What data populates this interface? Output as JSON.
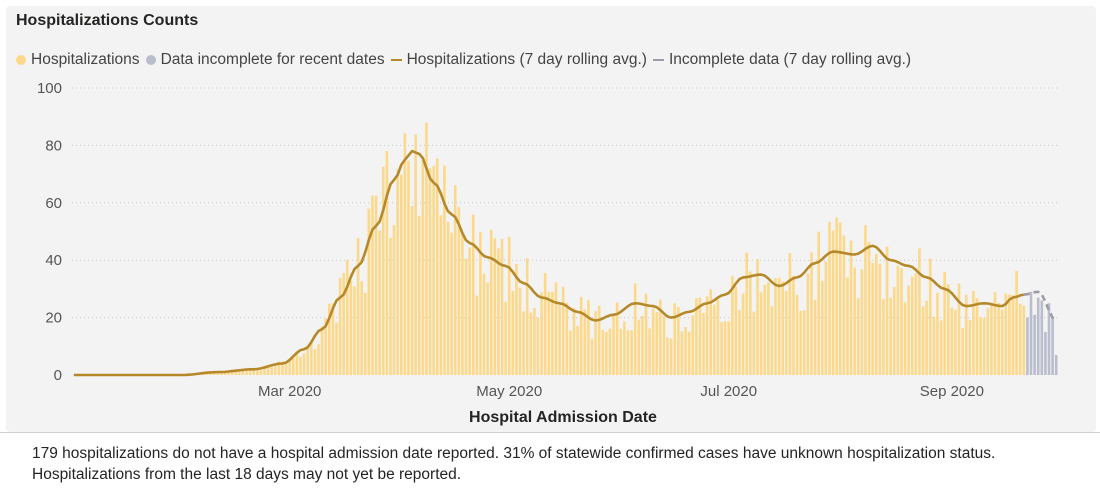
{
  "title": "Hospitalizations Counts",
  "footer_note": "179 hospitalizations do not have a hospital admission date reported. 31% of statewide confirmed cases have unknown hospitalization status. Hospitalizations from the last 18 days may not yet be reported.",
  "colors": {
    "bar": "#fcd98a",
    "bar_incomplete": "#b9bdcc",
    "line": "#b5892a",
    "line_incomplete": "#9c9ca6",
    "grid": "#c8c8c8"
  },
  "legend": [
    {
      "label": "Hospitalizations",
      "shape": "dot",
      "color": "#fcd98a"
    },
    {
      "label": "Data incomplete for recent dates",
      "shape": "dot",
      "color": "#b9bdcc"
    },
    {
      "label": "Hospitalizations (7 day rolling avg.)",
      "shape": "line",
      "color": "#b5892a"
    },
    {
      "label": "Incomplete data (7 day rolling avg.)",
      "shape": "line",
      "color": "#9c9ca6"
    }
  ],
  "chart_data": {
    "type": "bar",
    "title": "Hospitalizations Counts",
    "xlabel": "Hospital Admission Date",
    "ylabel": "",
    "ylim": [
      0,
      100
    ],
    "yticks": [
      0,
      20,
      40,
      60,
      80,
      100
    ],
    "xlim": [
      "2020-01-01",
      "2020-09-30"
    ],
    "xticks": [
      {
        "date": "2020-03-01",
        "label": "Mar 2020"
      },
      {
        "date": "2020-05-01",
        "label": "May 2020"
      },
      {
        "date": "2020-07-01",
        "label": "Jul 2020"
      },
      {
        "date": "2020-09-01",
        "label": "Sep 2020"
      }
    ],
    "grid": "horizontal-dotted",
    "legend_position": "top-left",
    "anchors": [
      [
        "2020-01-01",
        0
      ],
      [
        "2020-01-31",
        0
      ],
      [
        "2020-02-10",
        1
      ],
      [
        "2020-02-20",
        2
      ],
      [
        "2020-02-28",
        4
      ],
      [
        "2020-03-05",
        9
      ],
      [
        "2020-03-10",
        16
      ],
      [
        "2020-03-15",
        27
      ],
      [
        "2020-03-20",
        38
      ],
      [
        "2020-03-25",
        52
      ],
      [
        "2020-03-30",
        68
      ],
      [
        "2020-04-02",
        75
      ],
      [
        "2020-04-04",
        78
      ],
      [
        "2020-04-06",
        77
      ],
      [
        "2020-04-10",
        67
      ],
      [
        "2020-04-15",
        56
      ],
      [
        "2020-04-20",
        46
      ],
      [
        "2020-04-25",
        41
      ],
      [
        "2020-04-30",
        38
      ],
      [
        "2020-05-05",
        32
      ],
      [
        "2020-05-10",
        27
      ],
      [
        "2020-05-15",
        25
      ],
      [
        "2020-05-20",
        22
      ],
      [
        "2020-05-25",
        19
      ],
      [
        "2020-05-30",
        21
      ],
      [
        "2020-06-05",
        25
      ],
      [
        "2020-06-10",
        24
      ],
      [
        "2020-06-15",
        20
      ],
      [
        "2020-06-20",
        22
      ],
      [
        "2020-06-25",
        25
      ],
      [
        "2020-06-30",
        28
      ],
      [
        "2020-07-05",
        34
      ],
      [
        "2020-07-10",
        35
      ],
      [
        "2020-07-15",
        31
      ],
      [
        "2020-07-20",
        34
      ],
      [
        "2020-07-25",
        39
      ],
      [
        "2020-07-30",
        43
      ],
      [
        "2020-08-05",
        42
      ],
      [
        "2020-08-10",
        45
      ],
      [
        "2020-08-15",
        40
      ],
      [
        "2020-08-20",
        38
      ],
      [
        "2020-08-25",
        34
      ],
      [
        "2020-08-30",
        30
      ],
      [
        "2020-09-05",
        24
      ],
      [
        "2020-09-10",
        25
      ],
      [
        "2020-09-15",
        24
      ],
      [
        "2020-09-18",
        27
      ],
      [
        "2020-09-21",
        28
      ],
      [
        "2020-09-25",
        29
      ],
      [
        "2020-09-30",
        19
      ]
    ],
    "series": [
      {
        "name": "Hospitalizations",
        "type": "bar",
        "start": "2020-01-01",
        "end": "2020-09-21"
      },
      {
        "name": "Data incomplete for recent dates",
        "type": "bar",
        "start": "2020-09-22",
        "end": "2020-09-30",
        "values": [
          20,
          29,
          21,
          27,
          26,
          15,
          25,
          20,
          7
        ]
      },
      {
        "name": "Hospitalizations (7 day rolling avg.)",
        "type": "line",
        "start": "2020-01-01",
        "end": "2020-09-21"
      },
      {
        "name": "Incomplete data (7 day rolling avg.)",
        "type": "line",
        "start": "2020-09-21",
        "end": "2020-09-30",
        "dashed": true
      }
    ]
  }
}
